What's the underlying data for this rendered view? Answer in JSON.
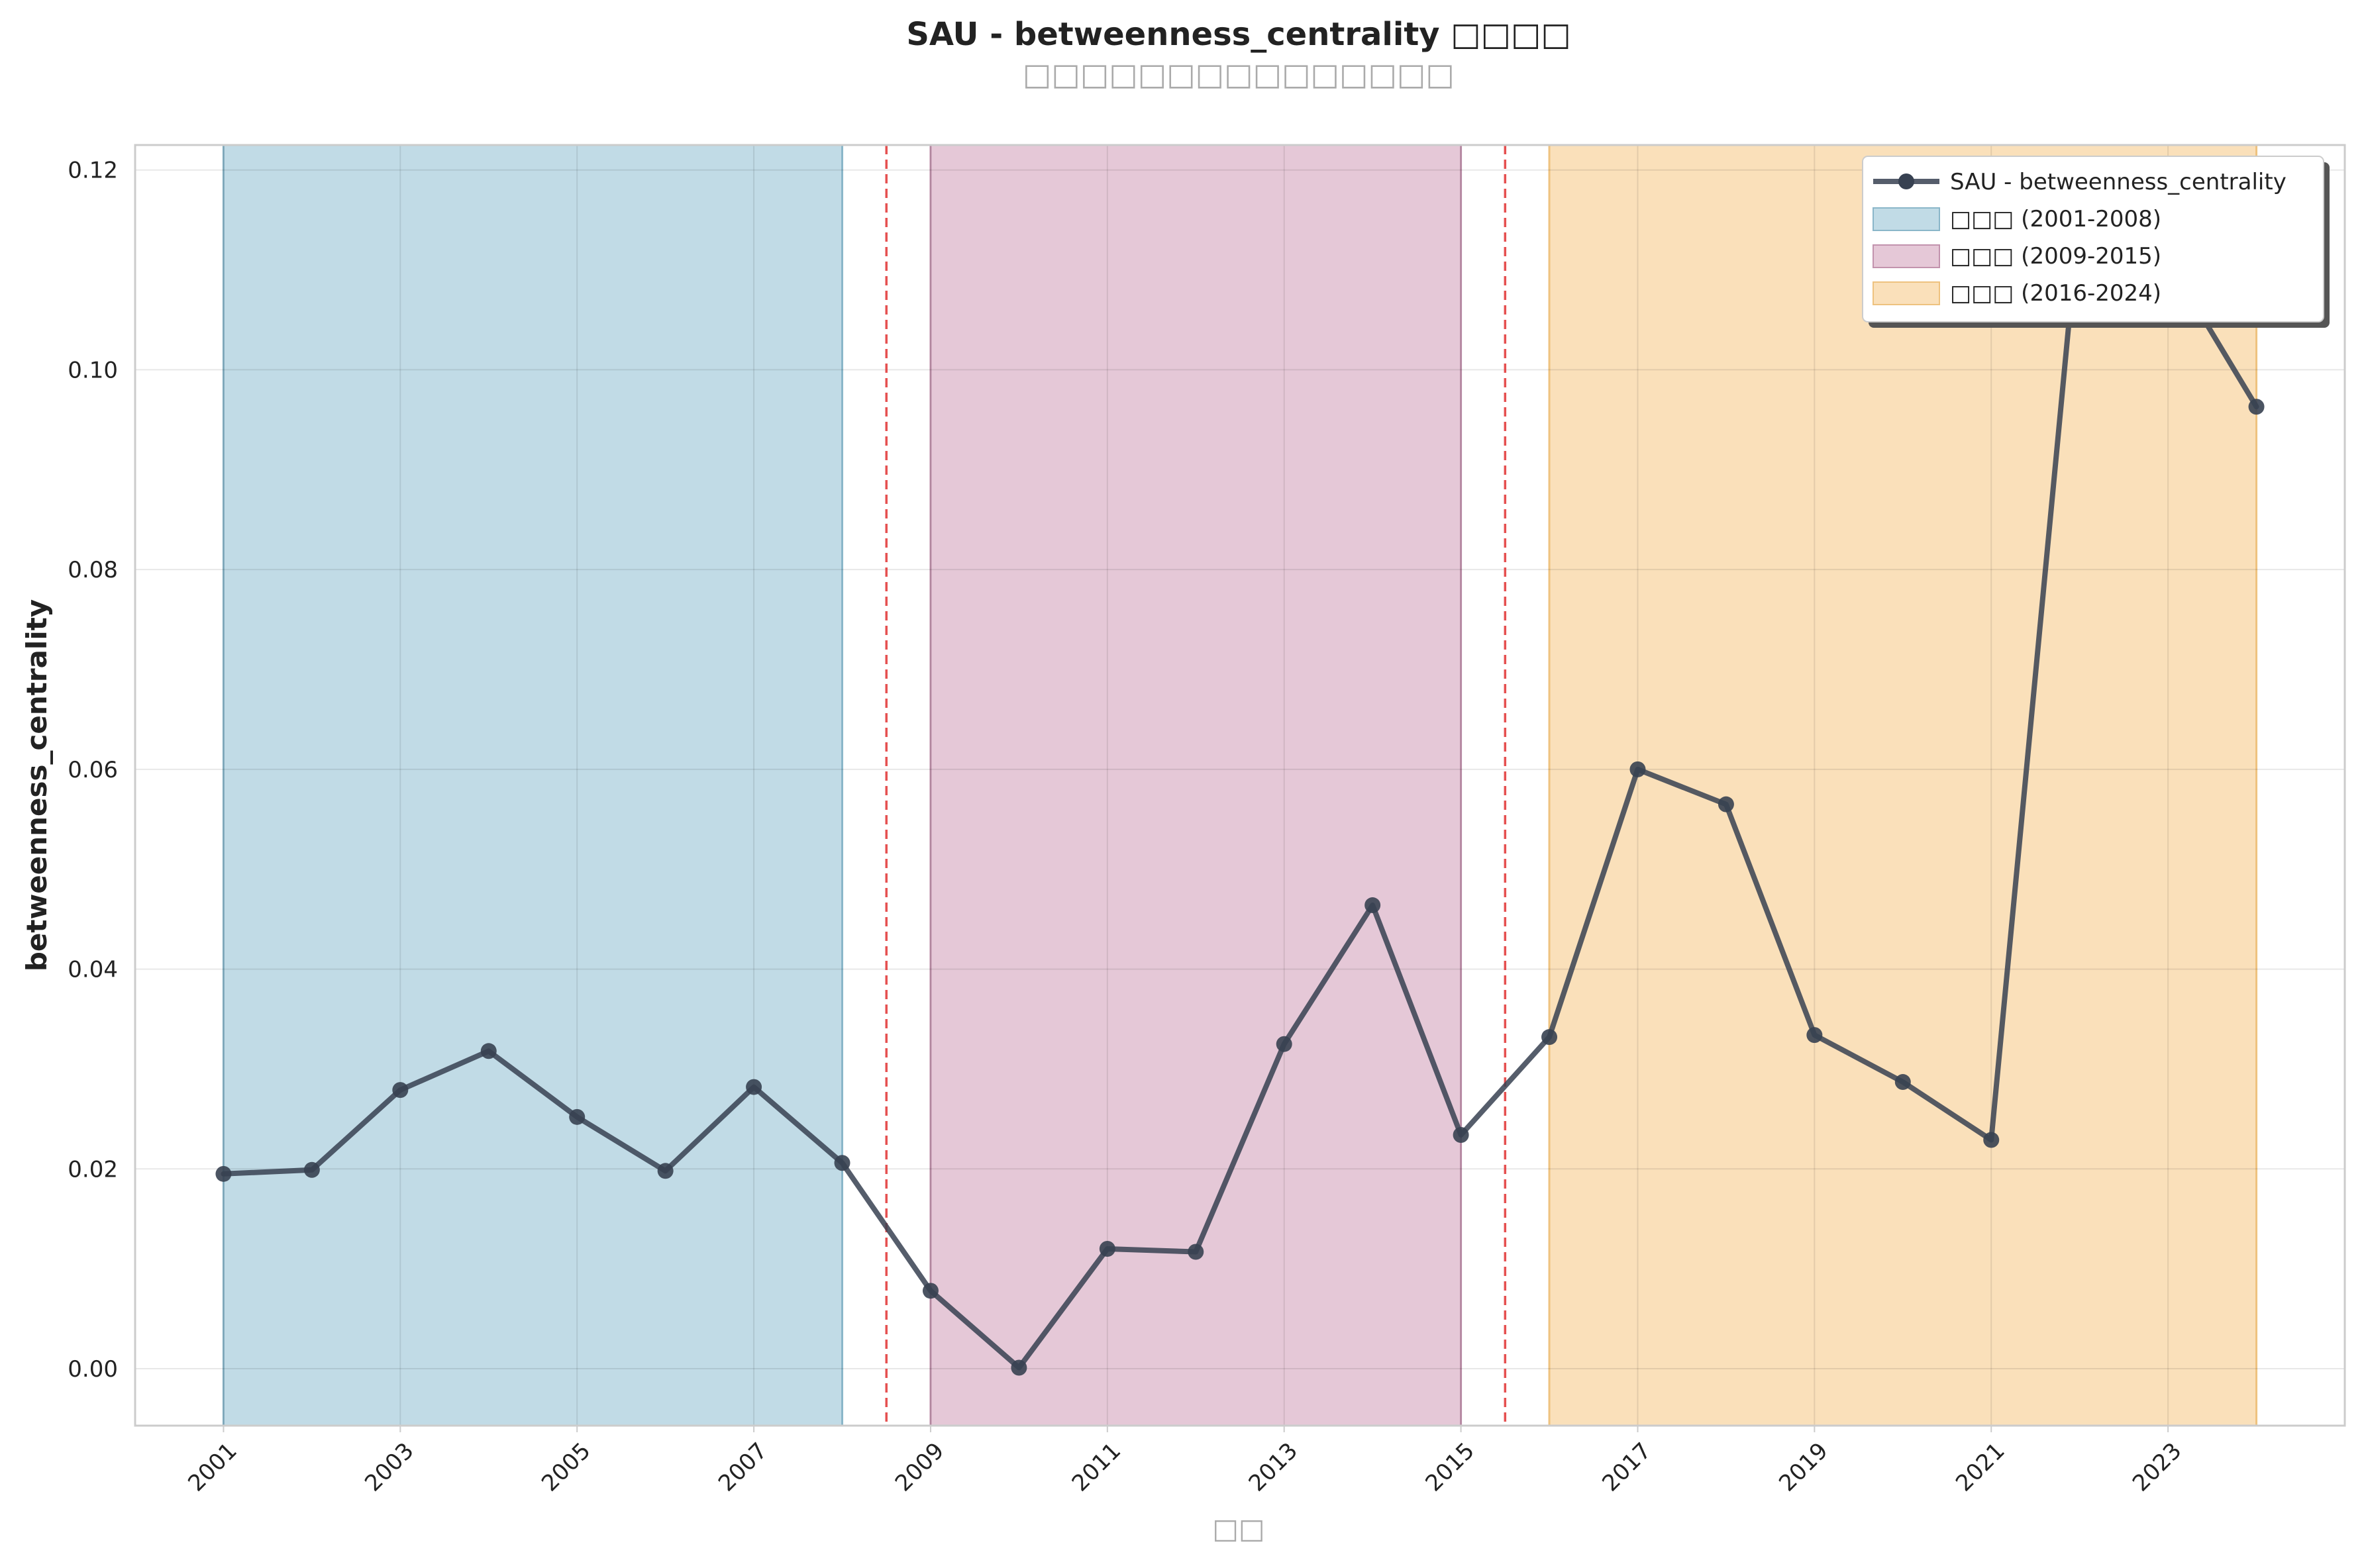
{
  "chart_data": {
    "type": "line",
    "title": "SAU - betweenness_centrality □□□□",
    "subtitle": "□□□□□□□□□□□□□□□",
    "xlabel": "□□",
    "ylabel": "betweenness_centrality",
    "x_ticks": [
      2001,
      2003,
      2005,
      2007,
      2009,
      2011,
      2013,
      2015,
      2017,
      2019,
      2021,
      2023
    ],
    "y_ticks": [
      "0.00",
      "0.02",
      "0.04",
      "0.06",
      "0.08",
      "0.10",
      "0.12"
    ],
    "xlim": [
      2000,
      2025
    ],
    "ylim": [
      -0.0057,
      0.1225
    ],
    "grid": true,
    "legend_position": "top-right",
    "series": [
      {
        "name": "SAU - betweenness_centrality",
        "color": "#374151",
        "x": [
          2001,
          2002,
          2003,
          2004,
          2005,
          2006,
          2007,
          2008,
          2009,
          2010,
          2011,
          2012,
          2013,
          2014,
          2015,
          2016,
          2017,
          2018,
          2019,
          2020,
          2021,
          2022,
          2023,
          2024
        ],
        "y": [
          0.0195,
          0.0199,
          0.0279,
          0.0318,
          0.0252,
          0.0198,
          0.0282,
          0.0206,
          0.0078,
          0.0001,
          0.012,
          0.0117,
          0.0325,
          0.0464,
          0.0234,
          0.0332,
          0.06,
          0.0565,
          0.0334,
          0.0287,
          0.0229,
          0.116,
          0.111,
          0.0963
        ]
      }
    ],
    "periods": [
      {
        "label": "□□□ (2001-2008)",
        "start": 2001,
        "end": 2008,
        "color": "#a9cddc",
        "edge": "#8ab6c9"
      },
      {
        "label": "□□□ (2009-2015)",
        "start": 2009,
        "end": 2015,
        "color": "#dbb3c8",
        "edge": "#c293ad"
      },
      {
        "label": "□□□ (2016-2024)",
        "start": 2016,
        "end": 2024,
        "color": "#f8d49f",
        "edge": "#eec27f"
      }
    ],
    "breakpoints": [
      2008.5,
      2015.5
    ],
    "breakpoint_color": "#e03131"
  }
}
